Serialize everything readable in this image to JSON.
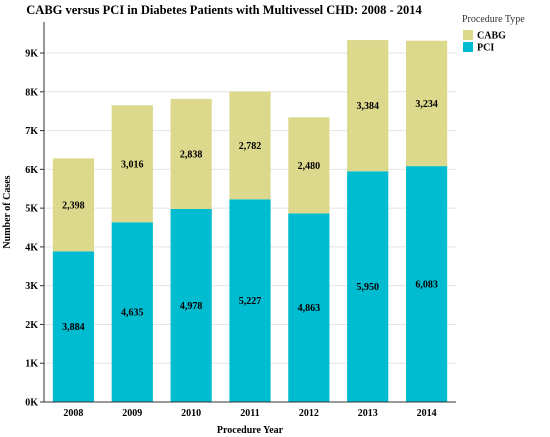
{
  "chart_data": {
    "type": "bar",
    "stacked": true,
    "title": "CABG versus PCI in Diabetes Patients with Multivessel CHD: 2008 - 2014",
    "xlabel": "Procedure Year",
    "ylabel": "Number of Cases",
    "categories": [
      "2008",
      "2009",
      "2010",
      "2011",
      "2012",
      "2013",
      "2014"
    ],
    "series": [
      {
        "name": "PCI",
        "color": "#00bcd0",
        "values": [
          3884,
          4635,
          4978,
          5227,
          4863,
          5950,
          6083
        ],
        "labels": [
          "3,884",
          "4,635",
          "4,978",
          "5,227",
          "4,863",
          "5,950",
          "6,083"
        ]
      },
      {
        "name": "CABG",
        "color": "#dcd88c",
        "values": [
          2398,
          3016,
          2838,
          2782,
          2480,
          3384,
          3234
        ],
        "labels": [
          "2,398",
          "3,016",
          "2,838",
          "2,782",
          "2,480",
          "3,384",
          "3,234"
        ]
      }
    ],
    "ylim": [
      0,
      9800
    ],
    "yticks": [
      0,
      1000,
      2000,
      3000,
      4000,
      5000,
      6000,
      7000,
      8000,
      9000
    ],
    "ytick_labels": [
      "0K",
      "1K",
      "2K",
      "3K",
      "4K",
      "5K",
      "6K",
      "7K",
      "8K",
      "9K"
    ],
    "grid": true,
    "legend": {
      "title": "Procedure Type",
      "placement": "top-right",
      "entries": [
        {
          "label": "CABG",
          "color": "#dcd88c"
        },
        {
          "label": "PCI",
          "color": "#00bcd0"
        }
      ]
    }
  }
}
